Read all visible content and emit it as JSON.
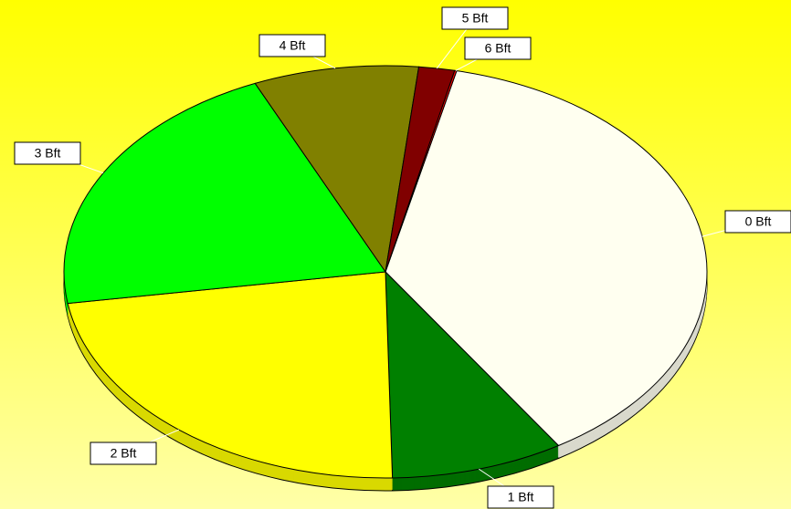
{
  "chart_data": {
    "type": "pie",
    "start_angle": 12.8,
    "categories": [
      "0 Bft",
      "1 Bft",
      "2 Bft",
      "3 Bft",
      "4 Bft",
      "5 Bft",
      "6 Bft"
    ],
    "values": [
      37.4,
      8.7,
      22.9,
      20.8,
      8.3,
      1.8,
      0.1
    ],
    "colors": [
      "#fffff0",
      "#008000",
      "#ffff00",
      "#00ff00",
      "#808000",
      "#800000",
      "#ff0000"
    ]
  }
}
